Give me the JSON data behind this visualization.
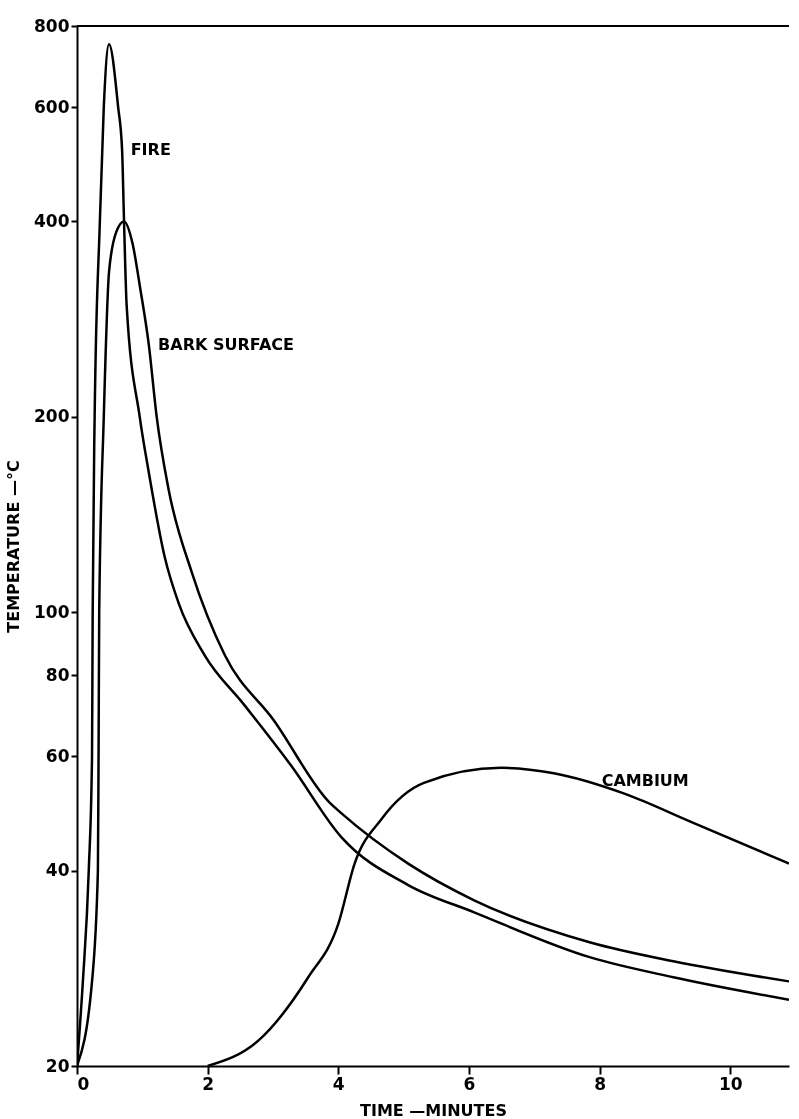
{
  "chart_data": {
    "type": "line",
    "xlabel": "TIME —MINUTES",
    "ylabel": "TEMPERATURE —°C",
    "log": "y",
    "xlim": [
      0,
      10.9
    ],
    "xticks": [
      0,
      2,
      4,
      6,
      8,
      10
    ],
    "ylim": [
      20,
      800
    ],
    "yticks": [
      20,
      40,
      60,
      80,
      100,
      200,
      400,
      600,
      800
    ],
    "grid": false,
    "marker": "none",
    "line_style": "solid",
    "series": [
      {
        "color": "#000000",
        "x": [
          0,
          0.09,
          0.18,
          0.23,
          0.24,
          0.27,
          0.35,
          0.41,
          0.49,
          0.63,
          0.69,
          0.72,
          0.76,
          0.96,
          1.1,
          1.34,
          1.56,
          1.95,
          2.56,
          3.28,
          4.05,
          5.07,
          6.08,
          7.86,
          9.13,
          10.9
        ],
        "values": [
          20,
          27,
          40,
          60,
          100,
          200,
          400,
          600,
          750,
          600,
          516,
          400,
          297,
          200,
          164,
          122,
          103,
          86,
          72,
          58,
          45,
          38,
          34.5,
          29.4,
          27.4,
          25.3
        ]
      },
      {
        "color": "#000000",
        "x": [
          0,
          0.23,
          0.32,
          0.33,
          0.34,
          0.41,
          0.49,
          0.6,
          0.72,
          0.85,
          0.96,
          1.1,
          1.22,
          1.4,
          1.76,
          2.26,
          3.02,
          3.86,
          4.05,
          5.07,
          6.08,
          7.86,
          9.13,
          10.9
        ],
        "values": [
          20,
          27,
          40,
          60,
          100,
          200,
          334,
          385,
          400,
          370,
          319,
          258,
          200,
          155,
          115,
          86,
          68,
          51,
          49,
          41,
          36,
          31,
          29,
          27
        ]
      },
      {
        "color": "#000000",
        "x": [
          2.0,
          2.78,
          3.54,
          4.0,
          4.25,
          4.66,
          5.31,
          6.49,
          7.3,
          8.37,
          9.39,
          10.9
        ],
        "values": [
          20,
          21.9,
          27.4,
          33.1,
          41,
          48,
          54.6,
          57.6,
          56.5,
          52.6,
          47.6,
          41
        ]
      }
    ],
    "annotations": [
      {
        "text": "FIRE",
        "x": 0.73,
        "y": 516
      },
      {
        "text": "BARK SURFACE",
        "x": 1.15,
        "y": 258
      },
      {
        "text": "CAMBIUM",
        "x": 7.94,
        "y": 55
      }
    ]
  }
}
